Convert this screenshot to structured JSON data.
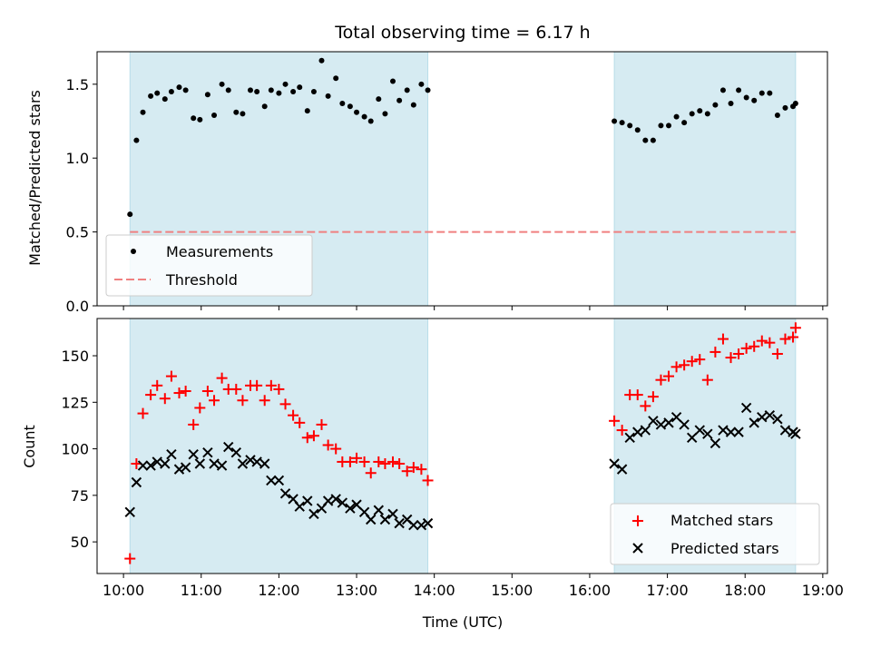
{
  "chart_data": [
    {
      "type": "scatter",
      "title": "Total observing time = 6.17 h",
      "ylabel": "Matched/Predicted stars",
      "ylim": [
        0,
        1.72
      ],
      "xlim_hours": [
        9.66,
        19.06
      ],
      "y_ticks": [
        0.0,
        0.5,
        1.0,
        1.5
      ],
      "y_tick_labels": [
        "0.0",
        "0.5",
        "1.0",
        "1.5"
      ],
      "shaded_intervals": [
        [
          "10:05",
          "13:55"
        ],
        [
          "16:19",
          "18:39"
        ]
      ],
      "series": [
        {
          "name": "Measurements",
          "marker": "dot",
          "color": "#000000",
          "x": [
            "10:05",
            "10:10",
            "10:15",
            "10:21",
            "10:26",
            "10:32",
            "10:37",
            "10:43",
            "10:48",
            "10:54",
            "10:59",
            "11:05",
            "11:10",
            "11:16",
            "11:21",
            "11:27",
            "11:32",
            "11:38",
            "11:43",
            "11:49",
            "11:54",
            "12:00",
            "12:05",
            "12:11",
            "12:16",
            "12:22",
            "12:27",
            "12:33",
            "12:38",
            "12:44",
            "12:49",
            "12:55",
            "13:00",
            "13:06",
            "13:11",
            "13:17",
            "13:22",
            "13:28",
            "13:33",
            "13:39",
            "13:44",
            "13:50",
            "13:55",
            "16:19",
            "16:25",
            "16:31",
            "16:37",
            "16:43",
            "16:49",
            "16:55",
            "17:01",
            "17:07",
            "17:13",
            "17:19",
            "17:25",
            "17:31",
            "17:37",
            "17:43",
            "17:49",
            "17:55",
            "18:01",
            "18:07",
            "18:13",
            "18:19",
            "18:25",
            "18:31",
            "18:37",
            "18:39"
          ],
          "y": [
            0.62,
            1.12,
            1.31,
            1.42,
            1.44,
            1.4,
            1.45,
            1.48,
            1.46,
            1.27,
            1.26,
            1.43,
            1.29,
            1.5,
            1.46,
            1.31,
            1.3,
            1.46,
            1.45,
            1.35,
            1.46,
            1.44,
            1.5,
            1.45,
            1.48,
            1.32,
            1.45,
            1.66,
            1.42,
            1.54,
            1.37,
            1.35,
            1.31,
            1.28,
            1.25,
            1.4,
            1.3,
            1.52,
            1.39,
            1.46,
            1.36,
            1.5,
            1.46,
            1.25,
            1.24,
            1.22,
            1.19,
            1.12,
            1.12,
            1.22,
            1.22,
            1.28,
            1.24,
            1.3,
            1.32,
            1.3,
            1.36,
            1.46,
            1.37,
            1.46,
            1.41,
            1.39,
            1.44,
            1.44,
            1.29,
            1.34,
            1.35,
            1.37
          ]
        },
        {
          "name": "Threshold",
          "marker": "dashed-line",
          "color": "#f08080",
          "x": [
            "10:05",
            "18:39"
          ],
          "y": [
            0.5,
            0.5
          ]
        }
      ],
      "legend": {
        "position": "lower-left",
        "entries": [
          "Measurements",
          "Threshold"
        ]
      }
    },
    {
      "type": "scatter",
      "xlabel": "Time (UTC)",
      "ylabel": "Count",
      "ylim": [
        33,
        170
      ],
      "xlim_hours": [
        9.66,
        19.06
      ],
      "x_ticks": [
        "10:00",
        "11:00",
        "12:00",
        "13:00",
        "14:00",
        "15:00",
        "16:00",
        "17:00",
        "18:00",
        "19:00"
      ],
      "y_ticks": [
        50,
        75,
        100,
        125,
        150
      ],
      "y_tick_labels": [
        "50",
        "75",
        "100",
        "125",
        "150"
      ],
      "shaded_intervals": [
        [
          "10:05",
          "13:55"
        ],
        [
          "16:19",
          "18:39"
        ]
      ],
      "series": [
        {
          "name": "Matched stars",
          "marker": "plus",
          "color": "#ff0000",
          "x": [
            "10:05",
            "10:10",
            "10:15",
            "10:21",
            "10:26",
            "10:32",
            "10:37",
            "10:43",
            "10:48",
            "10:54",
            "10:59",
            "11:05",
            "11:10",
            "11:16",
            "11:21",
            "11:27",
            "11:32",
            "11:38",
            "11:43",
            "11:49",
            "11:54",
            "12:00",
            "12:05",
            "12:11",
            "12:16",
            "12:22",
            "12:27",
            "12:33",
            "12:38",
            "12:44",
            "12:49",
            "12:55",
            "13:00",
            "13:06",
            "13:11",
            "13:17",
            "13:22",
            "13:28",
            "13:33",
            "13:39",
            "13:44",
            "13:50",
            "13:55",
            "16:19",
            "16:25",
            "16:31",
            "16:37",
            "16:43",
            "16:49",
            "16:55",
            "17:01",
            "17:07",
            "17:13",
            "17:19",
            "17:25",
            "17:31",
            "17:37",
            "17:43",
            "17:49",
            "17:55",
            "18:01",
            "18:07",
            "18:13",
            "18:19",
            "18:25",
            "18:31",
            "18:37",
            "18:39"
          ],
          "y": [
            41,
            92,
            119,
            129,
            134,
            127,
            139,
            130,
            131,
            113,
            122,
            131,
            126,
            138,
            132,
            132,
            126,
            134,
            134,
            126,
            134,
            132,
            124,
            118,
            114,
            106,
            107,
            113,
            102,
            100,
            93,
            93,
            95,
            93,
            87,
            93,
            92,
            93,
            92,
            88,
            90,
            89,
            83,
            115,
            110,
            129,
            129,
            123,
            128,
            137,
            139,
            144,
            145,
            147,
            148,
            137,
            152,
            159,
            149,
            151,
            154,
            155,
            158,
            157,
            151,
            159,
            160,
            165
          ]
        },
        {
          "name": "Predicted stars",
          "marker": "x",
          "color": "#000000",
          "x": [
            "10:05",
            "10:10",
            "10:15",
            "10:21",
            "10:26",
            "10:32",
            "10:37",
            "10:43",
            "10:48",
            "10:54",
            "10:59",
            "11:05",
            "11:10",
            "11:16",
            "11:21",
            "11:27",
            "11:32",
            "11:38",
            "11:43",
            "11:49",
            "11:54",
            "12:00",
            "12:05",
            "12:11",
            "12:16",
            "12:22",
            "12:27",
            "12:33",
            "12:38",
            "12:44",
            "12:49",
            "12:55",
            "13:00",
            "13:06",
            "13:11",
            "13:17",
            "13:22",
            "13:28",
            "13:33",
            "13:39",
            "13:44",
            "13:50",
            "13:55",
            "16:19",
            "16:25",
            "16:31",
            "16:37",
            "16:43",
            "16:49",
            "16:55",
            "17:01",
            "17:07",
            "17:13",
            "17:19",
            "17:25",
            "17:31",
            "17:37",
            "17:43",
            "17:49",
            "17:55",
            "18:01",
            "18:07",
            "18:13",
            "18:19",
            "18:25",
            "18:31",
            "18:37",
            "18:39"
          ],
          "y": [
            66,
            82,
            91,
            91,
            93,
            92,
            97,
            89,
            90,
            97,
            92,
            98,
            92,
            91,
            101,
            98,
            92,
            94,
            93,
            92,
            83,
            83,
            76,
            73,
            69,
            72,
            65,
            68,
            72,
            73,
            71,
            68,
            70,
            66,
            62,
            67,
            62,
            65,
            60,
            62,
            59,
            59,
            60,
            92,
            89,
            106,
            109,
            110,
            115,
            113,
            114,
            117,
            113,
            106,
            110,
            108,
            103,
            110,
            109,
            109,
            122,
            114,
            117,
            118,
            116,
            110,
            109,
            108
          ]
        }
      ],
      "legend": {
        "position": "lower-right",
        "entries": [
          "Matched stars",
          "Predicted stars"
        ]
      }
    }
  ]
}
